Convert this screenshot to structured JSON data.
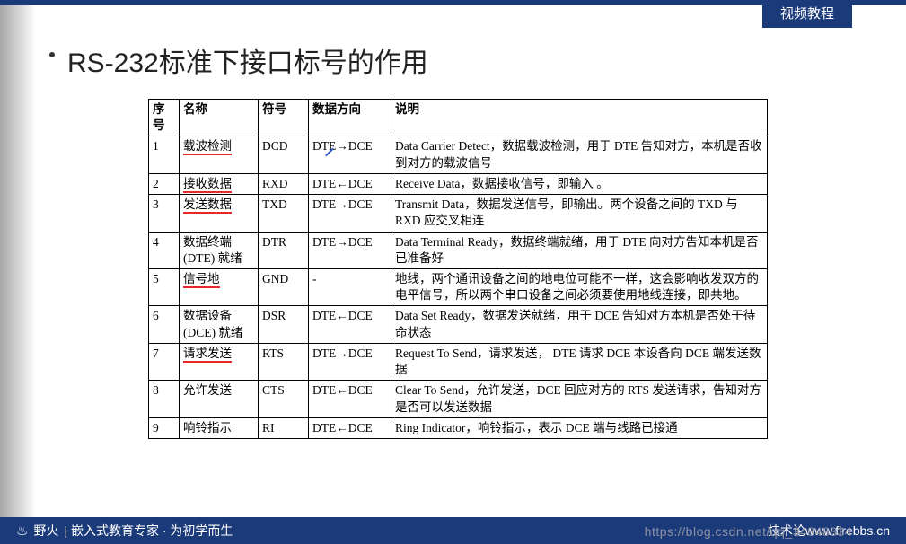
{
  "top_tab": "视频教程",
  "title": "RS-232标准下接口标号的作用",
  "columns": [
    "序号",
    "名称",
    "符号",
    "数据方向",
    "说明"
  ],
  "rows": [
    {
      "idx": "1",
      "name": "载波检测",
      "sym": "DCD",
      "dir": "DTE→DCE",
      "desc": "Data Carrier Detect，数据载波检测，用于 DTE 告知对方，本机是否收到对方的载波信号",
      "mark": true
    },
    {
      "idx": "2",
      "name": "接收数据",
      "sym": "RXD",
      "dir": "DTE←DCE",
      "desc": "Receive Data，数据接收信号，即输入 。",
      "mark": true
    },
    {
      "idx": "3",
      "name": "发送数据",
      "sym": "TXD",
      "dir": "DTE→DCE",
      "desc": "Transmit Data，数据发送信号，即输出。两个设备之间的 TXD 与 RXD 应交叉相连",
      "mark": true
    },
    {
      "idx": "4",
      "name": "数据终端 (DTE) 就绪",
      "sym": "DTR",
      "dir": "DTE→DCE",
      "desc": "Data Terminal Ready，数据终端就绪，用于 DTE 向对方告知本机是否已准备好",
      "mark": false
    },
    {
      "idx": "5",
      "name": "信号地",
      "sym": "GND",
      "dir": "-",
      "desc": "地线，两个通讯设备之间的地电位可能不一样，这会影响收发双方的电平信号，所以两个串口设备之间必须要使用地线连接，即共地。",
      "mark": true
    },
    {
      "idx": "6",
      "name": "数据设备 (DCE) 就绪",
      "sym": "DSR",
      "dir": "DTE←DCE",
      "desc": "Data Set Ready，数据发送就绪，用于 DCE 告知对方本机是否处于待命状态",
      "mark": false
    },
    {
      "idx": "7",
      "name": "请求发送",
      "sym": "RTS",
      "dir": "DTE→DCE",
      "desc": "Request To Send，请求发送， DTE 请求 DCE 本设备向 DCE 端发送数据",
      "mark": true
    },
    {
      "idx": "8",
      "name": "允许发送",
      "sym": "CTS",
      "dir": "DTE←DCE",
      "desc": "Clear To Send，允许发送，DCE 回应对方的 RTS 发送请求，告知对方是否可以发送数据",
      "mark": false
    },
    {
      "idx": "9",
      "name": "响铃指示",
      "sym": "RI",
      "dir": "DTE←DCE",
      "desc": "Ring Indicator，响铃指示，表示 DCE 端与线路已接通",
      "mark": false
    }
  ],
  "footer_brand": "野火",
  "footer_slogan": "| 嵌入式教育专家 · 为初学而生",
  "footer_right_prefix": "技术论",
  "footer_url": "www.firebbs.cn",
  "watermark": "https://blog.csdn.net/qq_34848334",
  "colors": {
    "brand_blue": "#1b3a7a",
    "red_mark": "#e62828",
    "text": "#000000",
    "bg": "#ffffff"
  }
}
